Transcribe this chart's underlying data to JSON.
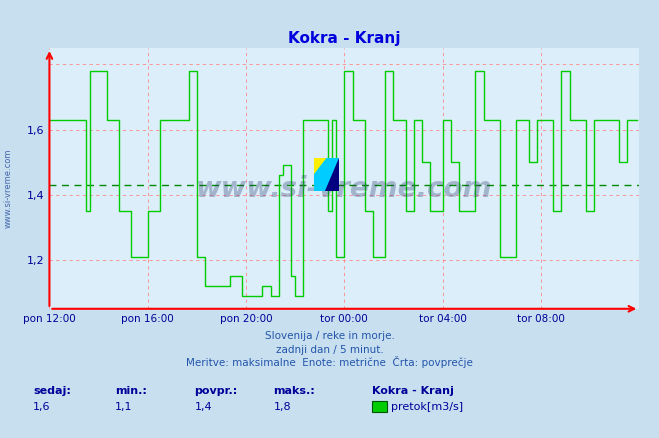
{
  "title": "Kokra - Kranj",
  "title_color": "#0000dd",
  "bg_color": "#c8dff0",
  "plot_bg_color": "#dceefa",
  "grid_color": "#ff8888",
  "avg_line_color": "#008800",
  "avg_value": 1.43,
  "line_color": "#00cc00",
  "ylabel_text": "www.si-vreme.com",
  "ylabel_color": "#4466aa",
  "xticklabels": [
    "pon 12:00",
    "pon 16:00",
    "pon 20:00",
    "tor 00:00",
    "tor 04:00",
    "tor 08:00"
  ],
  "yticklabels": [
    "1,2",
    "1,4",
    "1,6"
  ],
  "yticks": [
    1.2,
    1.4,
    1.6
  ],
  "ylim": [
    1.05,
    1.85
  ],
  "xlim": [
    0,
    288
  ],
  "xtick_positions": [
    0,
    48,
    96,
    144,
    192,
    240
  ],
  "subtitle1": "Slovenija / reke in morje.",
  "subtitle2": "zadnji dan / 5 minut.",
  "subtitle3": "Meritve: maksimalne  Enote: metrične  Črta: povprečje",
  "footer_label1": "sedaj:",
  "footer_label2": "min.:",
  "footer_label3": "povpr.:",
  "footer_label4": "maks.:",
  "footer_val1": "1,6",
  "footer_val2": "1,1",
  "footer_val3": "1,4",
  "footer_val4": "1,8",
  "footer_station": "Kokra - Kranj",
  "footer_legend": "pretok[m3/s]",
  "footer_legend_color": "#00cc00",
  "text_color": "#000099",
  "subtitle_color": "#2255aa",
  "watermark": "www.si-vreme.com",
  "watermark_color": "#223366"
}
